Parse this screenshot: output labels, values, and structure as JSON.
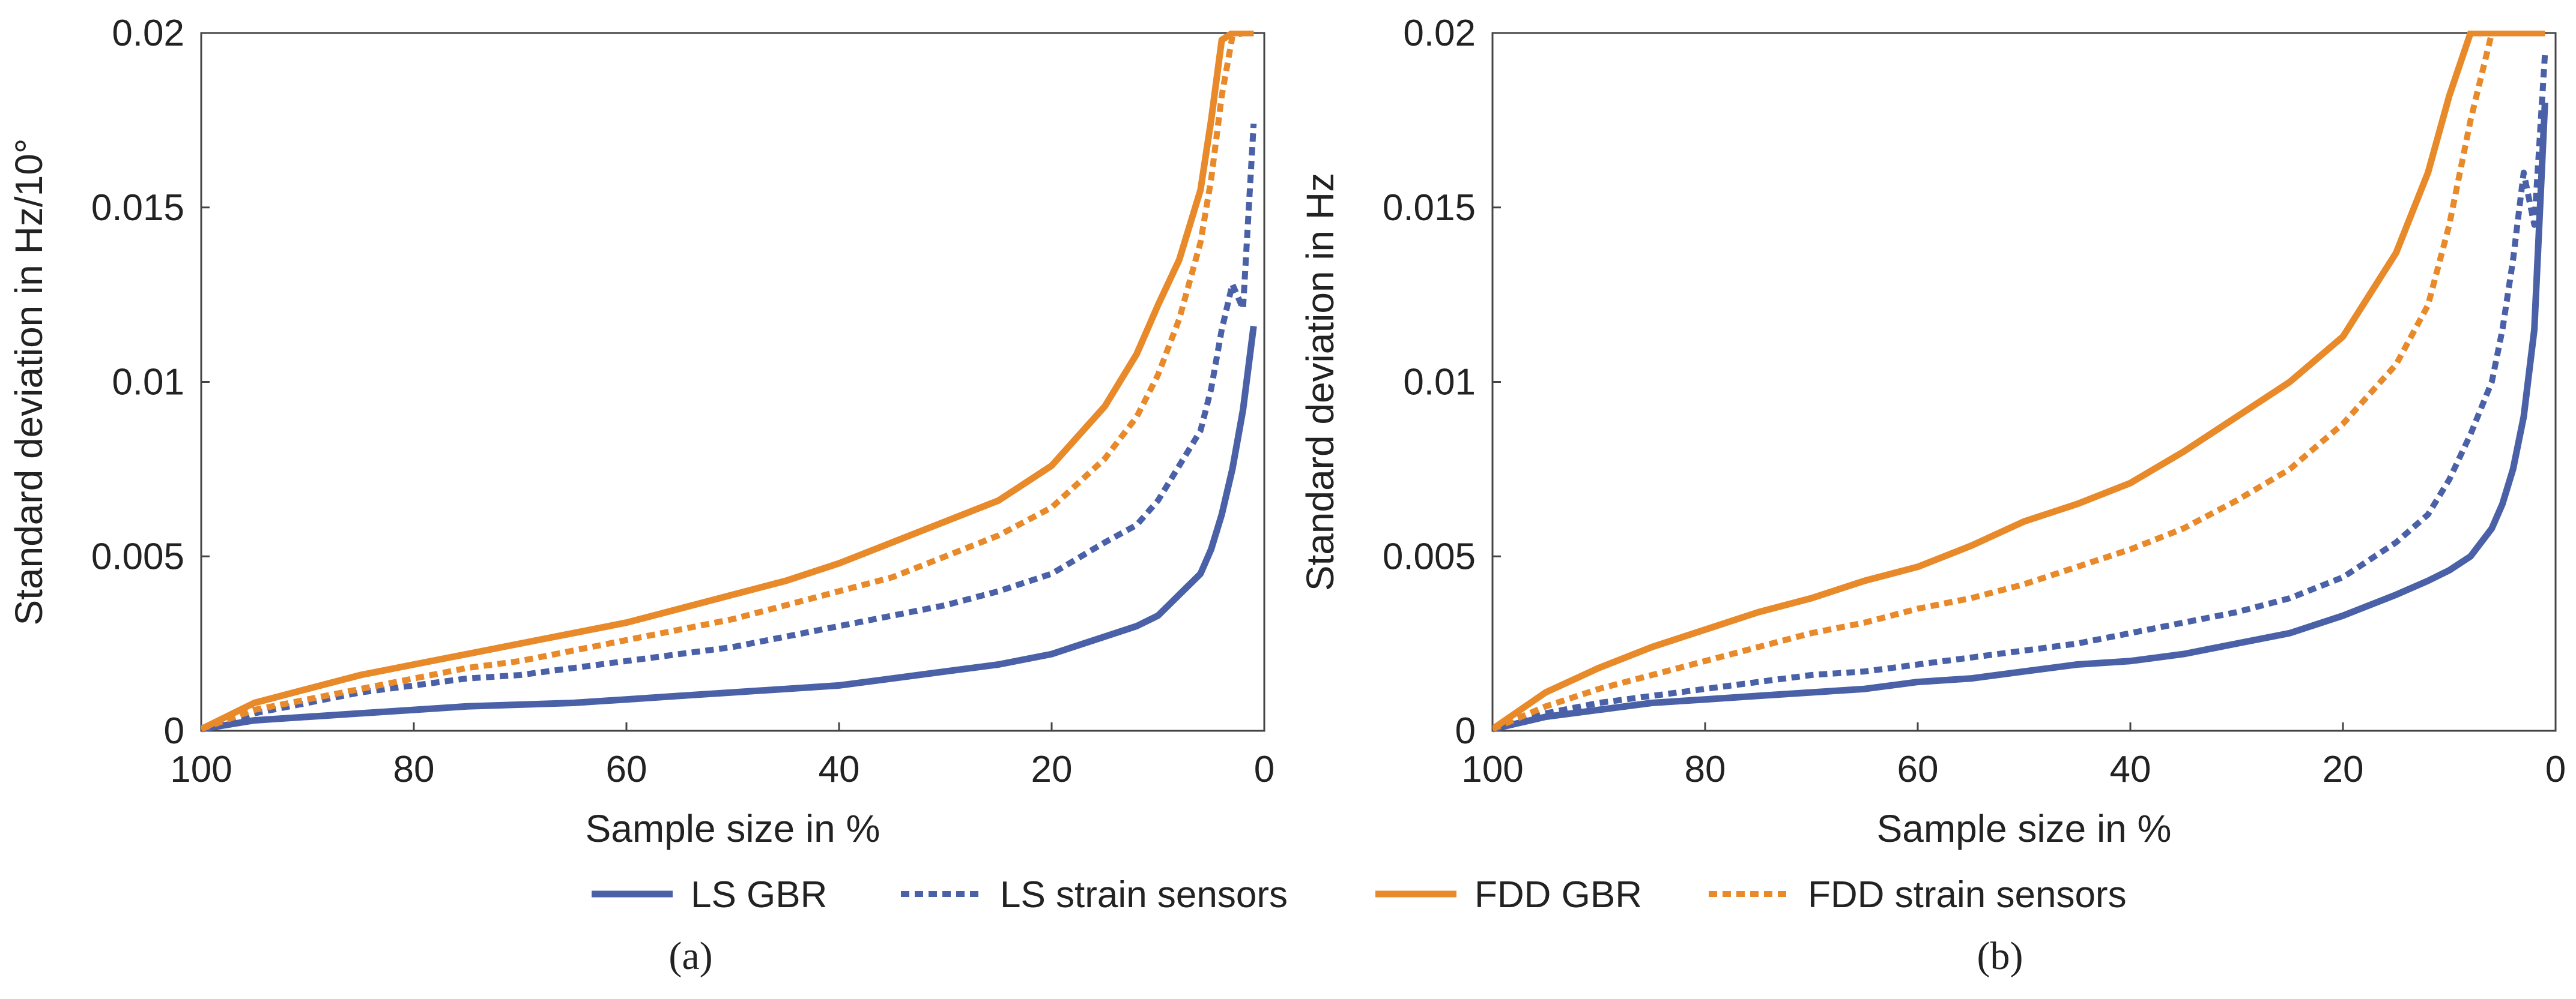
{
  "chart_data": [
    {
      "type": "line",
      "caption": "(a)",
      "xlabel": "Sample size in %",
      "ylabel": "Standard deviation in Hz/10°",
      "xlim": [
        100,
        0
      ],
      "ylim": [
        0,
        0.02
      ],
      "xticks": [
        "100",
        "80",
        "60",
        "40",
        "20",
        "0"
      ],
      "yticks": [
        "0",
        "0.005",
        "0.01",
        "0.015",
        "0.02"
      ],
      "grid": false,
      "x": [
        100,
        95,
        90,
        85,
        80,
        75,
        70,
        65,
        60,
        55,
        50,
        45,
        40,
        35,
        30,
        25,
        20,
        15,
        12,
        10,
        8,
        6,
        5,
        4,
        3,
        2,
        1
      ],
      "series": [
        {
          "name": "LS GBR",
          "style": "solid",
          "color": "#4a61a8",
          "values": [
            5e-05,
            0.0003,
            0.0004,
            0.0005,
            0.0006,
            0.0007,
            0.00075,
            0.0008,
            0.0009,
            0.001,
            0.0011,
            0.0012,
            0.0013,
            0.0015,
            0.0017,
            0.0019,
            0.0022,
            0.0027,
            0.003,
            0.0033,
            0.0039,
            0.0045,
            0.0052,
            0.0062,
            0.0075,
            0.0092,
            0.0116
          ]
        },
        {
          "name": "LS strain sensors",
          "style": "dashed",
          "color": "#4a61a8",
          "values": [
            5e-05,
            0.0005,
            0.0008,
            0.0011,
            0.0013,
            0.0015,
            0.0016,
            0.0018,
            0.002,
            0.0022,
            0.0024,
            0.0027,
            0.003,
            0.0033,
            0.0036,
            0.004,
            0.0045,
            0.0054,
            0.0059,
            0.0066,
            0.0076,
            0.0086,
            0.0098,
            0.0115,
            0.0128,
            0.0121,
            0.0174
          ]
        },
        {
          "name": "FDD GBR",
          "style": "solid",
          "color": "#e8892a",
          "values": [
            5e-05,
            0.0008,
            0.0012,
            0.0016,
            0.0019,
            0.0022,
            0.0025,
            0.0028,
            0.0031,
            0.0035,
            0.0039,
            0.0043,
            0.0048,
            0.0054,
            0.006,
            0.0066,
            0.0076,
            0.0093,
            0.0108,
            0.0122,
            0.0135,
            0.0155,
            0.0175,
            0.0198,
            0.02,
            0.02,
            0.02
          ]
        },
        {
          "name": "FDD strain sensors",
          "style": "dashed",
          "color": "#e8892a",
          "values": [
            5e-05,
            0.0006,
            0.0009,
            0.0012,
            0.0015,
            0.0018,
            0.002,
            0.0023,
            0.0026,
            0.0029,
            0.0032,
            0.0036,
            0.004,
            0.0044,
            0.005,
            0.0056,
            0.0064,
            0.0078,
            0.009,
            0.0102,
            0.0118,
            0.014,
            0.0158,
            0.0182,
            0.0199,
            0.02,
            0.02
          ]
        }
      ]
    },
    {
      "type": "line",
      "caption": "(b)",
      "xlabel": "Sample size in %",
      "ylabel": "Standard deviation in Hz",
      "xlim": [
        100,
        0
      ],
      "ylim": [
        0,
        0.02
      ],
      "xticks": [
        "100",
        "80",
        "60",
        "40",
        "20",
        "0"
      ],
      "yticks": [
        "0",
        "0.005",
        "0.01",
        "0.015",
        "0.02"
      ],
      "grid": false,
      "x": [
        100,
        95,
        90,
        85,
        80,
        75,
        70,
        65,
        60,
        55,
        50,
        45,
        40,
        35,
        30,
        25,
        20,
        15,
        12,
        10,
        8,
        6,
        5,
        4,
        3,
        2,
        1
      ],
      "series": [
        {
          "name": "LS GBR",
          "style": "solid",
          "color": "#4a61a8",
          "values": [
            5e-05,
            0.0004,
            0.0006,
            0.0008,
            0.0009,
            0.001,
            0.0011,
            0.0012,
            0.0014,
            0.0015,
            0.0017,
            0.0019,
            0.002,
            0.0022,
            0.0025,
            0.0028,
            0.0033,
            0.0039,
            0.0043,
            0.0046,
            0.005,
            0.0058,
            0.0065,
            0.0075,
            0.009,
            0.0115,
            0.018
          ]
        },
        {
          "name": "LS strain sensors",
          "style": "dashed",
          "color": "#4a61a8",
          "values": [
            5e-05,
            0.0005,
            0.0008,
            0.001,
            0.0012,
            0.0014,
            0.0016,
            0.0017,
            0.0019,
            0.0021,
            0.0023,
            0.0025,
            0.0028,
            0.0031,
            0.0034,
            0.0038,
            0.0044,
            0.0054,
            0.0062,
            0.0072,
            0.0085,
            0.01,
            0.0115,
            0.0135,
            0.016,
            0.0145,
            0.0194
          ]
        },
        {
          "name": "FDD GBR",
          "style": "solid",
          "color": "#e8892a",
          "values": [
            5e-05,
            0.0011,
            0.0018,
            0.0024,
            0.0029,
            0.0034,
            0.0038,
            0.0043,
            0.0047,
            0.0053,
            0.006,
            0.0065,
            0.0071,
            0.008,
            0.009,
            0.01,
            0.0113,
            0.0137,
            0.016,
            0.0182,
            0.02,
            0.02,
            0.02,
            0.02,
            0.02,
            0.02,
            0.02
          ]
        },
        {
          "name": "FDD strain sensors",
          "style": "dashed",
          "color": "#e8892a",
          "values": [
            5e-05,
            0.0007,
            0.0012,
            0.0016,
            0.002,
            0.0024,
            0.0028,
            0.0031,
            0.0035,
            0.0038,
            0.0042,
            0.0047,
            0.0052,
            0.0058,
            0.0066,
            0.0075,
            0.0088,
            0.0105,
            0.0122,
            0.0145,
            0.0175,
            0.02,
            0.02,
            0.02,
            0.02,
            0.02,
            0.02
          ]
        }
      ]
    }
  ],
  "legend": [
    {
      "label": "LS GBR",
      "style": "solid",
      "color": "#4a61a8"
    },
    {
      "label": "LS strain sensors",
      "style": "dashed",
      "color": "#4a61a8"
    },
    {
      "label": "FDD GBR",
      "style": "solid",
      "color": "#e8892a"
    },
    {
      "label": "FDD strain sensors",
      "style": "dashed",
      "color": "#e8892a"
    }
  ]
}
